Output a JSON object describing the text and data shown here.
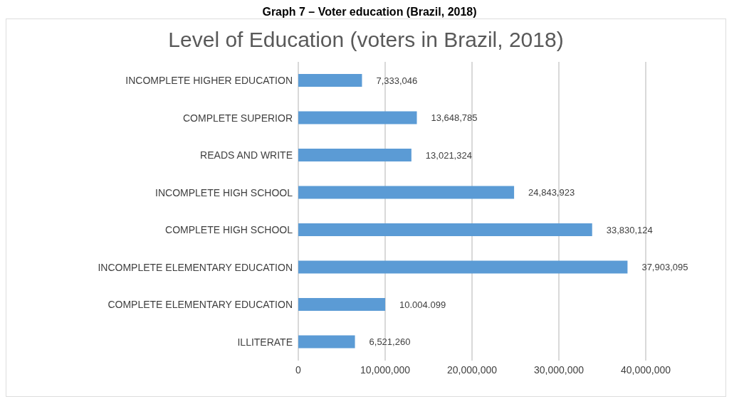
{
  "chart_data": {
    "type": "bar",
    "orientation": "horizontal",
    "title": "Graph 7 – Voter education (Brazil, 2018)",
    "subtitle": "Level of Education (voters in Brazil, 2018)",
    "categories": [
      "INCOMPLETE HIGHER EDUCATION",
      "COMPLETE SUPERIOR",
      "READS AND WRITE",
      "INCOMPLETE HIGH SCHOOL",
      "COMPLETE HIGH SCHOOL",
      "INCOMPLETE ELEMENTARY EDUCATION",
      "COMPLETE ELEMENTARY EDUCATION",
      "ILLITERATE"
    ],
    "values": [
      7333046,
      13648785,
      13021324,
      24843923,
      33830124,
      37903095,
      10004099,
      6521260
    ],
    "value_labels": [
      "7,333,046",
      "13,648,785",
      "13,021,324",
      "24,843,923",
      "33,830,124",
      "37,903,095",
      "10.004.099",
      "6,521,260"
    ],
    "color": "#5b9bd5",
    "xlim": [
      0,
      40000000
    ],
    "xticks": [
      0,
      {
        "value": 10000000,
        "label": "10,000,000"
      },
      {
        "value": 20000000,
        "label": "20,000,000"
      },
      {
        "value": 30000000,
        "label": "30,000,000"
      },
      {
        "value": 40000000,
        "label": "40,000,000"
      }
    ],
    "grid": "x",
    "legend": false
  }
}
